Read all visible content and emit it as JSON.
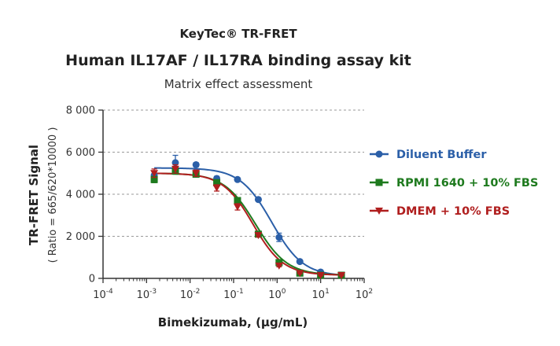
{
  "header": {
    "kicker": "KeyTec® TR-FRET",
    "title": "Human IL17AF / IL17RA binding assay kit",
    "subtitle": "Matrix effect assessment"
  },
  "chart_data": {
    "type": "scatter",
    "x_scale": "log",
    "xlabel": "Bimekizumab, (µg/mL)",
    "ylabel": "TR-FRET Signal",
    "ylabel_sub": "( Ratio = 665/620*10000 )",
    "xlim": [
      0.0001,
      100
    ],
    "ylim": [
      0,
      8000
    ],
    "y_ticks": [
      0,
      2000,
      4000,
      6000,
      8000
    ],
    "y_tick_labels": [
      "0",
      "2 000",
      "4 000",
      "6 000",
      "8 000"
    ],
    "x_tick_exponents": [
      "-4",
      "-3",
      "-2",
      "-1",
      "0",
      "1",
      "2"
    ],
    "x_tick_base": "10",
    "grid": "horizontal dashed at 2000, 4000, 6000",
    "legend_position": "right",
    "x": [
      0.0015,
      0.0046,
      0.0137,
      0.041,
      0.123,
      0.37,
      1.11,
      3.33,
      10,
      30
    ],
    "series": [
      {
        "name": "Diluent Buffer",
        "color": "#2b5fa8",
        "marker": "circle",
        "values": [
          4900,
          5500,
          5400,
          4750,
          4700,
          3750,
          1950,
          800,
          300,
          150
        ],
        "errors": [
          200,
          350,
          100,
          100,
          50,
          50,
          200,
          50,
          50,
          30
        ],
        "fit": {
          "top": 5250,
          "bottom": 100,
          "ec50": 0.75,
          "hill": 1.2
        }
      },
      {
        "name": "RPMI 1640 + 10% FBS",
        "color": "#1e7a1e",
        "marker": "square",
        "values": [
          4700,
          5100,
          4950,
          4550,
          3700,
          2100,
          750,
          250,
          150,
          150
        ],
        "errors": [
          150,
          150,
          100,
          100,
          100,
          80,
          50,
          30,
          30,
          30
        ],
        "fit": {
          "top": 5000,
          "bottom": 150,
          "ec50": 0.32,
          "hill": 1.2
        }
      },
      {
        "name": "DMEM + 10% FBS",
        "color": "#b01e1e",
        "marker": "triangle-down",
        "values": [
          5000,
          5200,
          5000,
          4300,
          3400,
          2050,
          600,
          250,
          150,
          150
        ],
        "errors": [
          200,
          200,
          150,
          150,
          150,
          80,
          50,
          30,
          30,
          30
        ],
        "fit": {
          "top": 5000,
          "bottom": 150,
          "ec50": 0.28,
          "hill": 1.25
        }
      }
    ]
  }
}
